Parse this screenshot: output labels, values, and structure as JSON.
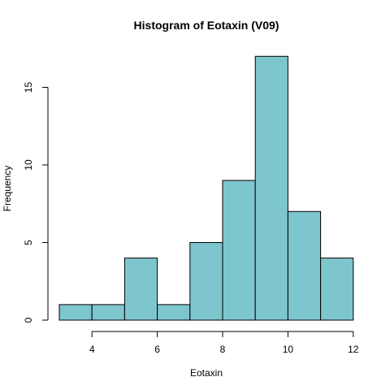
{
  "chart_data": {
    "type": "bar",
    "title": "Histogram of Eotaxin (V09)",
    "xlabel": "Eotaxin",
    "ylabel": "Frequency",
    "bins": [
      {
        "x0": 3,
        "x1": 4,
        "count": 1
      },
      {
        "x0": 4,
        "x1": 5,
        "count": 1
      },
      {
        "x0": 5,
        "x1": 6,
        "count": 4
      },
      {
        "x0": 6,
        "x1": 7,
        "count": 1
      },
      {
        "x0": 7,
        "x1": 8,
        "count": 5
      },
      {
        "x0": 8,
        "x1": 9,
        "count": 9
      },
      {
        "x0": 9,
        "x1": 10,
        "count": 17
      },
      {
        "x0": 10,
        "x1": 11,
        "count": 7
      },
      {
        "x0": 11,
        "x1": 12,
        "count": 4
      }
    ],
    "xlim": [
      3,
      12
    ],
    "ylim": [
      0,
      17
    ],
    "x_ticks": [
      "4",
      "6",
      "8",
      "10",
      "12"
    ],
    "y_ticks": [
      "0",
      "5",
      "10",
      "15"
    ],
    "bar_color": "#7ec6ce",
    "grid": false,
    "legend": "none"
  }
}
